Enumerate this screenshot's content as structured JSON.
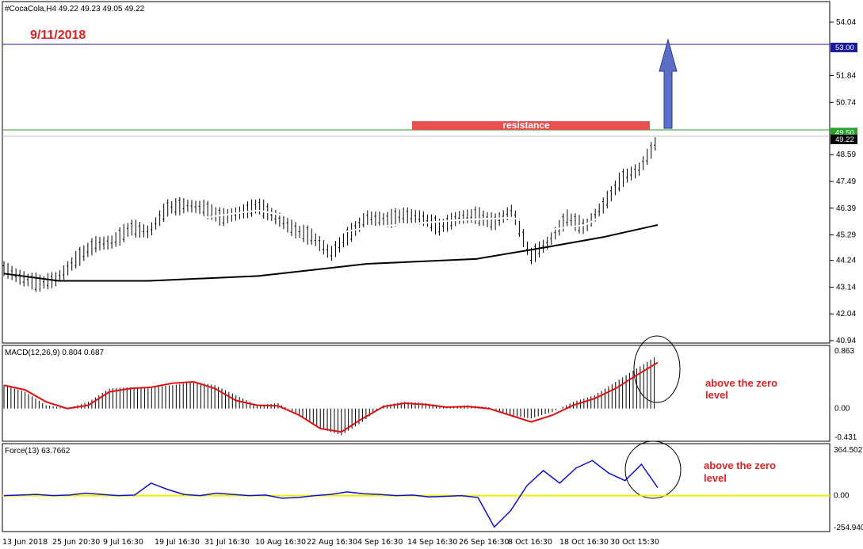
{
  "chart_title": "#CocaCola,H4  49.22 49.23 49.05 49.22",
  "date_annotation": "9/11/2018",
  "resistance_label": "resistance",
  "price_axis_ticks": [
    "54.04",
    "53.00",
    "51.84",
    "50.74",
    "49.50",
    "49.22",
    "48.59",
    "47.49",
    "46.39",
    "45.29",
    "44.24",
    "43.14",
    "42.04",
    "40.94"
  ],
  "price_tags": {
    "line_blue": "53.00",
    "line_green": "49.50",
    "last_price": "49.22"
  },
  "macd": {
    "label": "MACD(12,26,9) 0.804 0.687",
    "ticks": [
      "0.863",
      "0.00",
      "-0.431"
    ],
    "note": "above the zero level"
  },
  "force": {
    "label": "Force(13) 63.7662",
    "ticks": [
      "364.5027",
      "0.00",
      "-254.940"
    ],
    "note": "above the zero level"
  },
  "date_labels": [
    "13 Jun 2018",
    "25 Jun 20:30",
    "9 Jul 16:30",
    "19 Jul 16:30",
    "31 Jul 16:30",
    "10 Aug 16:30",
    "22 Aug 16:30",
    "4 Sep 16:30",
    "14 Sep 16:30",
    "26 Sep 16:30",
    "8 Oct 16:30",
    "18 Oct 16:30",
    "30 Oct 15:30"
  ],
  "colors": {
    "resistance": "#e85050",
    "arrow": "#5b6fc8",
    "macd_signal": "#e01010",
    "force_line": "#1010c8",
    "zero_line": "#f0f000",
    "ma_fast": "#ffffff",
    "ma_slow": "#000000",
    "horizontal_blue": "#1a1a9a",
    "horizontal_green": "#2aa02a"
  },
  "chart_data": {
    "type": "line",
    "title": "#CocaCola,H4",
    "price": {
      "ylim": [
        40.94,
        54.5
      ],
      "close": [
        [
          0,
          43.9
        ],
        [
          10,
          43.5
        ],
        [
          20,
          43.3
        ],
        [
          30,
          43.5
        ],
        [
          40,
          44.3
        ],
        [
          50,
          44.9
        ],
        [
          60,
          45.0
        ],
        [
          70,
          45.6
        ],
        [
          80,
          45.4
        ],
        [
          90,
          46.4
        ],
        [
          100,
          46.5
        ],
        [
          110,
          46.4
        ],
        [
          120,
          46.0
        ],
        [
          130,
          46.2
        ],
        [
          140,
          46.5
        ],
        [
          150,
          46.0
        ],
        [
          160,
          45.5
        ],
        [
          170,
          45.2
        ],
        [
          180,
          44.5
        ],
        [
          190,
          45.3
        ],
        [
          200,
          46.0
        ],
        [
          210,
          45.9
        ],
        [
          220,
          46.1
        ],
        [
          230,
          46.0
        ],
        [
          240,
          45.6
        ],
        [
          250,
          46.0
        ],
        [
          260,
          46.1
        ],
        [
          270,
          45.8
        ],
        [
          280,
          46.3
        ],
        [
          290,
          44.4
        ],
        [
          300,
          45.0
        ],
        [
          310,
          46.0
        ],
        [
          320,
          45.6
        ],
        [
          330,
          46.5
        ],
        [
          340,
          47.6
        ],
        [
          350,
          48.0
        ],
        [
          360,
          49.2
        ]
      ],
      "ma_fast": [
        [
          30,
          43.3
        ],
        [
          80,
          45.0
        ],
        [
          100,
          45.9
        ],
        [
          140,
          46.3
        ],
        [
          160,
          46.0
        ],
        [
          180,
          45.3
        ],
        [
          200,
          45.6
        ],
        [
          250,
          45.9
        ],
        [
          280,
          46.0
        ],
        [
          300,
          45.5
        ],
        [
          320,
          45.7
        ],
        [
          340,
          46.5
        ],
        [
          360,
          47.8
        ]
      ],
      "ma_slow": [
        [
          0,
          43.7
        ],
        [
          30,
          43.4
        ],
        [
          80,
          43.4
        ],
        [
          140,
          43.6
        ],
        [
          200,
          44.1
        ],
        [
          260,
          44.3
        ],
        [
          300,
          44.8
        ],
        [
          330,
          45.2
        ],
        [
          360,
          45.7
        ]
      ],
      "resistance": 49.5,
      "target": 53.0
    },
    "macd": {
      "ylim": [
        -0.431,
        0.863
      ],
      "main": [
        0.35,
        0.25,
        0.05,
        0.0,
        0.1,
        0.3,
        0.32,
        0.32,
        0.35,
        0.4,
        0.35,
        0.2,
        0.05,
        0.08,
        -0.1,
        -0.3,
        -0.4,
        -0.2,
        0.05,
        0.1,
        0.08,
        0.03,
        0.05,
        0.02,
        -0.1,
        -0.15,
        -0.05,
        0.1,
        0.2,
        0.4,
        0.6,
        0.8
      ],
      "signal": [
        0.35,
        0.28,
        0.1,
        0.0,
        0.05,
        0.25,
        0.3,
        0.32,
        0.38,
        0.4,
        0.3,
        0.12,
        0.05,
        0.04,
        -0.1,
        -0.3,
        -0.35,
        -0.15,
        0.03,
        0.08,
        0.06,
        0.02,
        0.03,
        0.0,
        -0.1,
        -0.2,
        -0.1,
        0.05,
        0.15,
        0.3,
        0.5,
        0.69
      ]
    },
    "force": {
      "ylim": [
        -254.94,
        364.5027
      ],
      "values": [
        0,
        5,
        10,
        0,
        5,
        20,
        10,
        0,
        5,
        100,
        50,
        10,
        0,
        20,
        10,
        0,
        5,
        -20,
        -15,
        0,
        10,
        30,
        15,
        10,
        0,
        5,
        -10,
        -5,
        0,
        -15,
        -250,
        -120,
        80,
        200,
        100,
        220,
        280,
        180,
        120,
        250,
        63.77
      ]
    }
  }
}
